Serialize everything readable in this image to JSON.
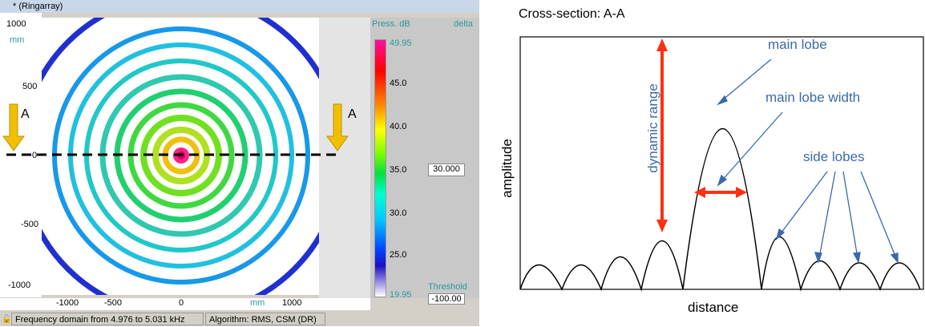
{
  "left_window": {
    "title": "* (Ringarray)",
    "y_ticks": [
      "1000",
      "500",
      "0",
      "-500",
      "-1000"
    ],
    "y_unit": "mm",
    "x_ticks": [
      "-1000",
      "-500",
      "0",
      "1000"
    ],
    "x_unit": "mm",
    "colorbar": {
      "label": "Press. dB",
      "label2": "delta",
      "ticks": [
        "49.95",
        "45.0",
        "40.0",
        "35.0",
        "30.0",
        "25.0",
        "19.95"
      ],
      "delta_value": "30.000",
      "threshold_label": "Threshold",
      "threshold_value": "-100.00"
    },
    "status_frequency": "Frequency domain from 4.976 to 5.031 kHz",
    "status_algorithm": "Algorithm: RMS, CSM (DR)",
    "section_label": "A",
    "colors": {
      "arrow": "#f0c000",
      "titlebar": "#c8d8e8"
    }
  },
  "cross_section": {
    "title": "Cross-section: A-A",
    "main_lobe": "main lobe",
    "main_lobe_width": "main lobe width",
    "side_lobes": "side lobes",
    "dynamic_range": "dynamic range",
    "ylabel": "amplitude",
    "xlabel": "distance",
    "colors": {
      "annotation": "#3a6aa8",
      "red_arrow": "#ff3010"
    }
  }
}
